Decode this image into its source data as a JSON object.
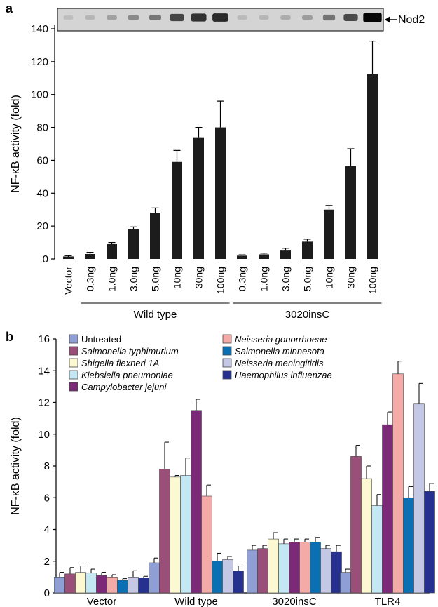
{
  "chart_data": [
    {
      "panel": "a",
      "type": "bar",
      "ylabel": "NF-κB activity (fold)",
      "ylim": [
        0,
        150
      ],
      "yticks": [
        0,
        20,
        40,
        60,
        80,
        100,
        120,
        140
      ],
      "categories": [
        "Vector",
        "0.3ng",
        "1.0ng",
        "3.0ng",
        "5.0ng",
        "10ng",
        "30ng",
        "100ng",
        "0.3ng",
        "1.0ng",
        "3.0ng",
        "5.0ng",
        "10ng",
        "30ng",
        "100ng"
      ],
      "values": [
        1.5,
        3,
        9,
        18,
        28,
        59,
        74,
        80,
        2,
        2.8,
        5.5,
        10.5,
        30,
        56.5,
        112.5
      ],
      "errors": [
        0.5,
        1,
        1,
        1.5,
        3,
        7,
        6,
        16,
        0.5,
        0.7,
        1,
        1.5,
        2.5,
        10.5,
        20
      ],
      "bar_color": "#1c1c1c",
      "groups": [
        {
          "label": "Wild type",
          "from": 1,
          "to": 7
        },
        {
          "label": "3020insC",
          "from": 8,
          "to": 14
        }
      ],
      "blot_label": "Nod2",
      "grid": false
    },
    {
      "panel": "b",
      "type": "bar",
      "ylabel": "NF-κB activity (fold)",
      "ylim": [
        0,
        16
      ],
      "yticks": [
        0,
        2,
        4,
        6,
        8,
        10,
        12,
        14,
        16
      ],
      "categories": [
        "Vector",
        "Wild type",
        "3020insC",
        "TLR4"
      ],
      "series": [
        {
          "name": "Untreated",
          "color": "#8f9fd6",
          "values": [
            1.0,
            1.9,
            2.7,
            1.3
          ],
          "errors": [
            0.3,
            0.3,
            0.3,
            0.2
          ]
        },
        {
          "name": "Salmonella typhimurium",
          "color": "#9a4f79",
          "values": [
            1.2,
            7.8,
            2.8,
            8.6
          ],
          "errors": [
            0.4,
            1.7,
            0.2,
            0.7
          ]
        },
        {
          "name": "Shigella flexneri 1A",
          "color": "#fbf8d2",
          "values": [
            1.3,
            7.3,
            3.4,
            7.2
          ],
          "errors": [
            0.4,
            0.1,
            0.4,
            0.8
          ]
        },
        {
          "name": "Klebsiella pneumoniae",
          "color": "#c3e8f3",
          "values": [
            1.25,
            7.4,
            3.1,
            5.5
          ],
          "errors": [
            0.25,
            1.1,
            0.3,
            0.7
          ]
        },
        {
          "name": "Campylobacter jejuni",
          "color": "#7c2a78",
          "values": [
            1.1,
            11.5,
            3.2,
            10.6
          ],
          "errors": [
            0.2,
            0.7,
            0.2,
            0.8
          ]
        },
        {
          "name": "Neisseria gonorrhoeae",
          "color": "#f4aaa7",
          "values": [
            1.0,
            6.1,
            3.2,
            13.8
          ],
          "errors": [
            0.15,
            0.7,
            0.2,
            0.8
          ]
        },
        {
          "name": "Salmonella minnesota",
          "color": "#0b6fb4",
          "values": [
            0.8,
            2.0,
            3.2,
            6.0
          ],
          "errors": [
            0.1,
            0.5,
            0.3,
            0.7
          ]
        },
        {
          "name": "Neisseria meningitidis",
          "color": "#c4c8e5",
          "values": [
            1.0,
            2.1,
            2.8,
            11.9
          ],
          "errors": [
            0.4,
            0.2,
            0.2,
            1.3
          ]
        },
        {
          "name": "Haemophilus influenzae",
          "color": "#26308f",
          "values": [
            0.95,
            1.4,
            2.6,
            6.4
          ],
          "errors": [
            0.1,
            0.3,
            0.4,
            0.5
          ]
        }
      ],
      "legend_position": "top-left",
      "grid": false
    }
  ]
}
